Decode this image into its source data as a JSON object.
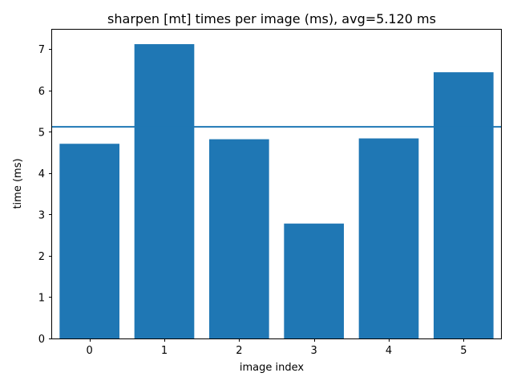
{
  "chart_data": {
    "type": "bar",
    "title": "sharpen [mt] times per image (ms), avg=5.120 ms",
    "xlabel": "image index",
    "ylabel": "time (ms)",
    "categories": [
      "0",
      "1",
      "2",
      "3",
      "4",
      "5"
    ],
    "values": [
      4.71,
      7.12,
      4.82,
      2.78,
      4.84,
      6.44
    ],
    "average": 5.12,
    "ylim": [
      0,
      7.47
    ],
    "xlim": [
      -0.5,
      5.5
    ],
    "yticks": [
      0,
      1,
      2,
      3,
      4,
      5,
      6,
      7
    ],
    "grid": false,
    "legend": "none",
    "bar_color": "#1f77b4",
    "avg_line_color": "#1f77b4"
  }
}
